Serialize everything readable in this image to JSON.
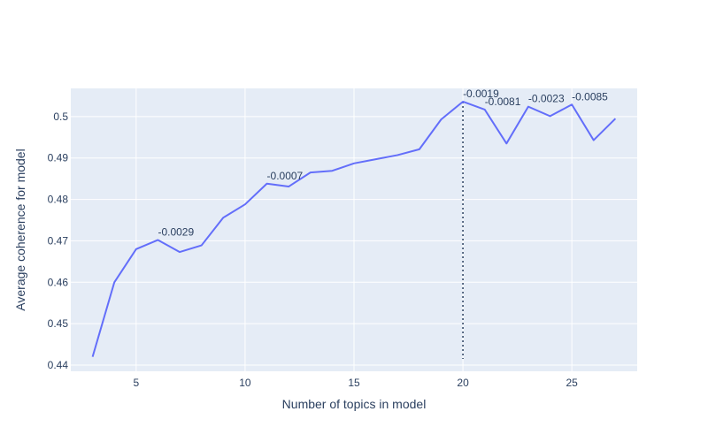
{
  "chart_data": {
    "type": "line",
    "title": "",
    "xlabel": "Number of topics in model",
    "ylabel": "Average coherence for model",
    "xlim": [
      2,
      28
    ],
    "ylim": [
      0.4385,
      0.5068
    ],
    "xticks": [
      5,
      10,
      15,
      20,
      25
    ],
    "yticks": [
      0.44,
      0.45,
      0.46,
      0.47,
      0.48,
      0.49,
      0.5
    ],
    "ytick_labels": [
      "0.44",
      "0.45",
      "0.46",
      "0.47",
      "0.48",
      "0.49",
      "0.5"
    ],
    "grid": true,
    "series": [
      {
        "name": "coherence",
        "x": [
          3,
          4,
          5,
          6,
          7,
          8,
          9,
          10,
          11,
          12,
          13,
          14,
          15,
          16,
          17,
          18,
          19,
          20,
          21,
          22,
          23,
          24,
          25,
          26,
          27
        ],
        "y": [
          0.442,
          0.46,
          0.468,
          0.4702,
          0.4673,
          0.4689,
          0.4756,
          0.4788,
          0.4838,
          0.4831,
          0.4865,
          0.4869,
          0.4887,
          0.4897,
          0.4907,
          0.4921,
          0.4993,
          0.5036,
          0.5017,
          0.4935,
          0.5024,
          0.5001,
          0.5029,
          0.4943,
          0.4995
        ]
      }
    ],
    "vline": {
      "x": 20,
      "y_from": 0.4415,
      "y_to": 0.5036
    },
    "annotations": [
      {
        "x": 6,
        "y": 0.4702,
        "text": "-0.0029"
      },
      {
        "x": 11,
        "y": 0.4838,
        "text": "-0.0007"
      },
      {
        "x": 20,
        "y": 0.5036,
        "text": "-0.0019"
      },
      {
        "x": 21,
        "y": 0.5017,
        "text": "-0.0081"
      },
      {
        "x": 23,
        "y": 0.5024,
        "text": "-0.0023"
      },
      {
        "x": 25,
        "y": 0.5029,
        "text": "-0.0085"
      }
    ],
    "colors": {
      "line": "#636efa",
      "plot_bg": "#e5ecf6",
      "grid": "#ffffff",
      "text": "#2a3f5f",
      "vline": "#2a3f5f"
    }
  }
}
